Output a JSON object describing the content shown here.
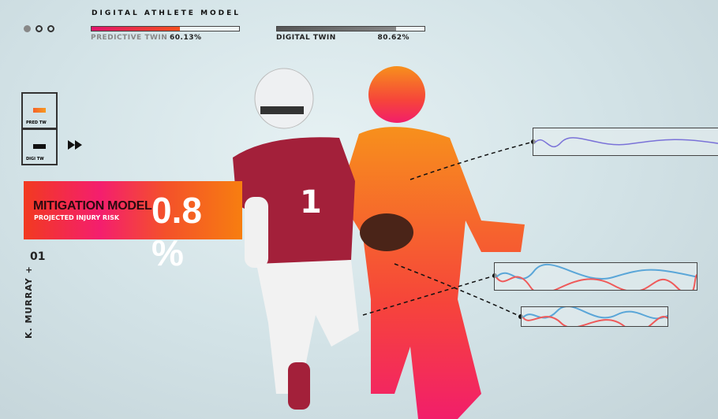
{
  "header": {
    "title": "DIGITAL ATHLETE MODEL",
    "dots": [
      {
        "filled": true
      },
      {
        "filled": false
      },
      {
        "filled": false
      }
    ]
  },
  "predictive_twin": {
    "label": "PREDICTIVE TWIN",
    "value": "60.13%",
    "progress": 60.13
  },
  "digital_twin": {
    "label": "DIGITAL TWIN",
    "value": "80.62%",
    "progress": 80.62
  },
  "legend": [
    {
      "label": "PRED TW",
      "color": "#f4632a"
    },
    {
      "label": "DIGI TW",
      "color": "#111111"
    }
  ],
  "fast_forward_icon": "fast-forward-icon",
  "mitigation": {
    "title": "MITIGATION MODEL",
    "subtitle": "PROJECTED INJURY RISK",
    "value": "0.8 %"
  },
  "player": {
    "number": "01",
    "name": "K. MURRAY +"
  },
  "colors": {
    "accent_red": "#f41e6e",
    "accent_orange": "#f77e10",
    "jersey": "#a3203a",
    "wave_blue": "#5aa6d8",
    "wave_red": "#ef5a5a"
  }
}
